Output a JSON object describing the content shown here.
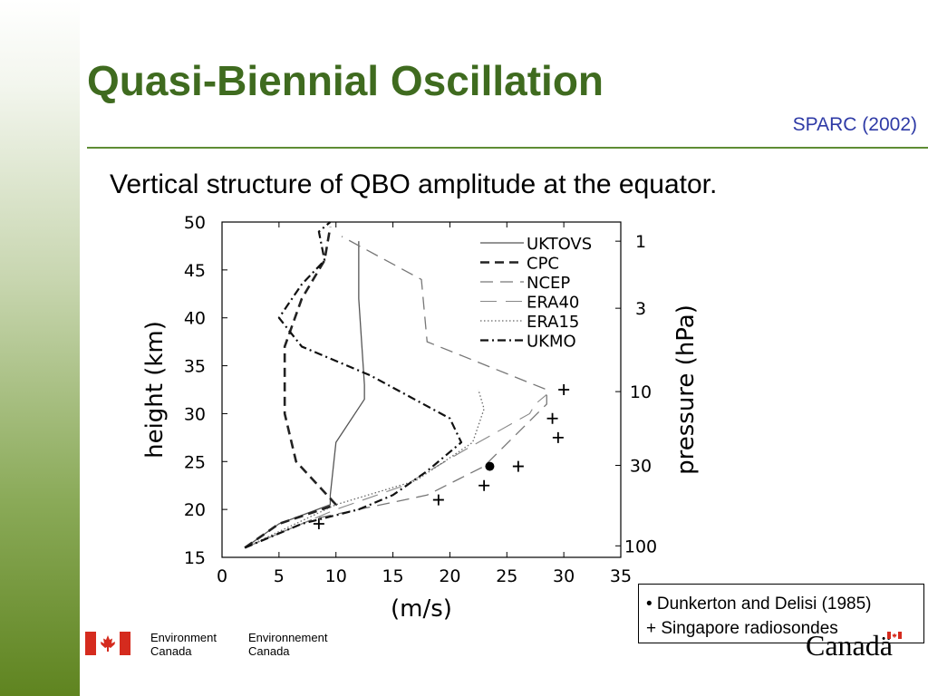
{
  "slide": {
    "title": "Quasi-Biennial Oscillation",
    "source": "SPARC (2002)",
    "subtitle": "Vertical structure of QBO amplitude at the equator."
  },
  "legend_box": {
    "line1": "• Dunkerton and Delisi (1985)",
    "line2": "+ Singapore radiosondes"
  },
  "footer": {
    "english_line1": "Environment",
    "english_line2": "Canada",
    "french_line1": "Environnement",
    "french_line2": "Canada",
    "wordmark": "Canadä"
  },
  "colors": {
    "title": "#3f6b1f",
    "source": "#2e3aa6",
    "rule": "#5e8d34",
    "flag_red": "#d52b1e"
  },
  "chart_data": {
    "type": "line",
    "title": "",
    "xlabel": "(m/s)",
    "ylabel": "height (km)",
    "y2label": "pressure (hPa)",
    "xlim": [
      0,
      35
    ],
    "ylim": [
      15,
      50
    ],
    "x_ticks": [
      0,
      5,
      10,
      15,
      20,
      25,
      30,
      35
    ],
    "y_ticks": [
      15,
      20,
      25,
      30,
      35,
      40,
      45,
      50
    ],
    "y2_ticks": [
      {
        "label": "1",
        "height": 48
      },
      {
        "label": "3",
        "height": 41
      },
      {
        "label": "10",
        "height": 32.3
      },
      {
        "label": "30",
        "height": 24.6
      },
      {
        "label": "100",
        "height": 16.2
      }
    ],
    "legend_position": "top-right",
    "series": [
      {
        "name": "UKTOVS",
        "style": "solid",
        "points": [
          [
            2,
            16
          ],
          [
            5,
            18.5
          ],
          [
            9.5,
            20.5
          ],
          [
            9.5,
            21.5
          ],
          [
            10,
            27
          ],
          [
            12.5,
            31.5
          ],
          [
            12.5,
            33
          ],
          [
            12,
            42
          ],
          [
            12,
            48
          ]
        ]
      },
      {
        "name": "CPC",
        "style": "dashed",
        "points": [
          [
            2,
            16
          ],
          [
            5,
            18.5
          ],
          [
            10,
            20.5
          ],
          [
            6.5,
            25
          ],
          [
            5.5,
            30
          ],
          [
            5.5,
            37
          ],
          [
            7,
            42
          ],
          [
            9,
            46
          ],
          [
            9.5,
            49.5
          ]
        ]
      },
      {
        "name": "NCEP",
        "style": "dashed-long",
        "points": [
          [
            2,
            16
          ],
          [
            8,
            19
          ],
          [
            18,
            21.5
          ],
          [
            23,
            24.5
          ],
          [
            28.5,
            31
          ],
          [
            28.5,
            32.5
          ],
          [
            18,
            37.5
          ],
          [
            17.5,
            44
          ],
          [
            10.5,
            48.5
          ]
        ]
      },
      {
        "name": "ERA40",
        "style": "long-dash",
        "points": [
          [
            2,
            16
          ],
          [
            10,
            20
          ],
          [
            16,
            22.5
          ],
          [
            21,
            26
          ],
          [
            27,
            30
          ],
          [
            27.5,
            31
          ],
          [
            28.5,
            32
          ]
        ]
      },
      {
        "name": "ERA15",
        "style": "dotted",
        "points": [
          [
            2,
            16
          ],
          [
            10,
            20.5
          ],
          [
            17,
            23
          ],
          [
            22,
            27
          ],
          [
            23,
            30.5
          ],
          [
            22.5,
            32.5
          ]
        ]
      },
      {
        "name": "UKMO",
        "style": "dash-dot",
        "points": [
          [
            2,
            16
          ],
          [
            7,
            18.5
          ],
          [
            12,
            20
          ],
          [
            15,
            21.5
          ],
          [
            18,
            24
          ],
          [
            21,
            27
          ],
          [
            20,
            29.5
          ],
          [
            13,
            34
          ],
          [
            7,
            37
          ],
          [
            5,
            40
          ],
          [
            7,
            43.5
          ],
          [
            9,
            46
          ],
          [
            8.5,
            49
          ],
          [
            9.5,
            50
          ]
        ]
      }
    ],
    "dunkerton_delisi": {
      "marker": "•",
      "points": [
        [
          23.5,
          24.5
        ]
      ]
    },
    "singapore": {
      "marker": "+",
      "points": [
        [
          30,
          32.5
        ],
        [
          29,
          29.5
        ],
        [
          29.5,
          27.5
        ],
        [
          26,
          24.5
        ],
        [
          23,
          22.5
        ],
        [
          19,
          21
        ],
        [
          8.5,
          18.5
        ]
      ]
    }
  }
}
